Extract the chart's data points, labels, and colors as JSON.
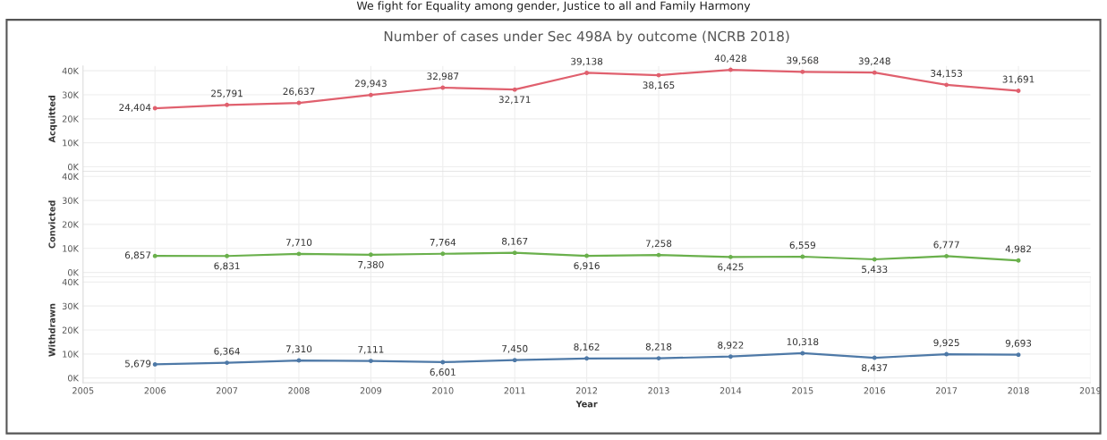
{
  "chart_data": [
    {
      "type": "line",
      "title": "Number of cases under Sec 498A by outcome (NCRB 2018)",
      "annotations": [
        "We fight for Equality among gender, Justice to all and Family Harmony"
      ],
      "ylabel": "Acquitted",
      "x": [
        2006,
        2007,
        2008,
        2009,
        2010,
        2011,
        2012,
        2013,
        2014,
        2015,
        2016,
        2017,
        2018
      ],
      "series": [
        {
          "color": "#e0606e",
          "values": [
            24404,
            25791,
            26637,
            29943,
            32987,
            32171,
            39138,
            38165,
            40428,
            39568,
            39248,
            34153,
            31691
          ],
          "value_labels": [
            "24,404",
            "25,791",
            "26,637",
            "29,943",
            "32,987",
            "32,171",
            "39,138",
            "38,165",
            "40,428",
            "39,568",
            "39,248",
            "34,153",
            "31,691"
          ]
        }
      ],
      "xlim": [
        2005,
        2019
      ],
      "ylim": [
        -2000,
        42000
      ],
      "yticks": [
        {
          "value": 0,
          "label": "0K"
        },
        {
          "value": 10000,
          "label": "10K"
        },
        {
          "value": 20000,
          "label": "20K"
        },
        {
          "value": 30000,
          "label": "30K"
        },
        {
          "value": 40000,
          "label": "40K"
        }
      ],
      "tick_labels": "y",
      "grid": true,
      "marker": "circle"
    },
    {
      "type": "line",
      "ylabel": "Convicted",
      "x": [
        2006,
        2007,
        2008,
        2009,
        2010,
        2011,
        2012,
        2013,
        2014,
        2015,
        2016,
        2017,
        2018
      ],
      "series": [
        {
          "color": "#6ab04c",
          "values": [
            6857,
            6831,
            7710,
            7380,
            7764,
            8167,
            6916,
            7258,
            6425,
            6559,
            5433,
            6777,
            4982
          ],
          "value_labels": [
            "6,857",
            "6,831",
            "7,710",
            "7,380",
            "7,764",
            "8,167",
            "6,916",
            "7,258",
            "6,425",
            "6,559",
            "5,433",
            "6,777",
            "4,982"
          ]
        }
      ],
      "xlim": [
        2005,
        2019
      ],
      "ylim": [
        -2000,
        42000
      ],
      "yticks": [
        {
          "value": 0,
          "label": "0K"
        },
        {
          "value": 10000,
          "label": "10K"
        },
        {
          "value": 20000,
          "label": "20K"
        },
        {
          "value": 30000,
          "label": "30K"
        },
        {
          "value": 40000,
          "label": "40K"
        }
      ],
      "tick_labels": "y",
      "grid": true,
      "marker": "circle"
    },
    {
      "type": "line",
      "ylabel": "Withdrawn",
      "xlabel": "Year",
      "x": [
        2006,
        2007,
        2008,
        2009,
        2010,
        2011,
        2012,
        2013,
        2014,
        2015,
        2016,
        2017,
        2018
      ],
      "series": [
        {
          "color": "#4e79a7",
          "values": [
            5679,
            6364,
            7310,
            7111,
            6601,
            7450,
            8162,
            8218,
            8922,
            10318,
            8437,
            9925,
            9693
          ],
          "value_labels": [
            "5,679",
            "6,364",
            "7,310",
            "7,111",
            "6,601",
            "7,450",
            "8,162",
            "8,218",
            "8,922",
            "10,318",
            "8,437",
            "9,925",
            "9,693"
          ]
        }
      ],
      "xlim": [
        2005,
        2019
      ],
      "xticks": [
        2005,
        2006,
        2007,
        2008,
        2009,
        2010,
        2011,
        2012,
        2013,
        2014,
        2015,
        2016,
        2017,
        2018,
        2019
      ],
      "ylim": [
        -2000,
        42000
      ],
      "yticks": [
        {
          "value": 0,
          "label": "0K"
        },
        {
          "value": 10000,
          "label": "10K"
        },
        {
          "value": 20000,
          "label": "20K"
        },
        {
          "value": 30000,
          "label": "30K"
        },
        {
          "value": 40000,
          "label": "40K"
        }
      ],
      "grid": true,
      "marker": "circle"
    }
  ]
}
